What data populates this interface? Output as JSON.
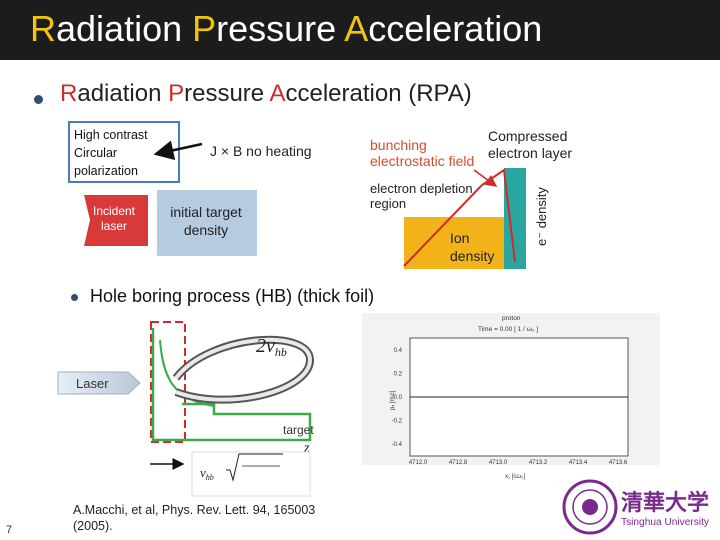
{
  "header": {
    "title_parts": [
      {
        "initial": "R",
        "rest": "adiation "
      },
      {
        "initial": "P",
        "rest": "ressure "
      },
      {
        "initial": "A",
        "rest": "cceleration"
      }
    ]
  },
  "subtitle": {
    "parts": [
      {
        "initial": "R",
        "rest": "adiation "
      },
      {
        "initial": "P",
        "rest": "ressure "
      },
      {
        "initial": "A",
        "rest": "cceleration (RPA)"
      }
    ]
  },
  "callout": {
    "lines": [
      "High contrast",
      "Circular",
      "polarization"
    ]
  },
  "figure_top": {
    "no_heating": "J × B no heating",
    "incident_laser": [
      "Incident",
      "laser"
    ],
    "initial_density": [
      "initial target",
      "density"
    ],
    "bunching": [
      "bunching",
      "electrostatic field"
    ],
    "compressed": [
      "Compressed",
      "electron layer"
    ],
    "depletion": [
      "electron depletion",
      "region"
    ],
    "ion_density": [
      "Ion",
      "density"
    ],
    "e_density": "e⁻ density"
  },
  "hole_boring": "Hole boring process  (HB)  (thick foil)",
  "figure_bottom": {
    "laser": "Laser",
    "velocity": "2v",
    "velocity_sub": "hb",
    "target": "target",
    "z": "z",
    "formula_lhs": "v",
    "formula_lhs_sub": "hb"
  },
  "plot": {
    "title": "proton",
    "time": "Time =    0.00 [ 1 / ω₀ ]",
    "ylabel": "pₓ [mᵢc]",
    "xlabel": "x₁ [cω₀]",
    "yticks": [
      "0.4",
      "0.2",
      "0.0",
      "-0.2",
      "-0.4"
    ],
    "xticks": [
      "4712.0",
      "4712.8",
      "4713.0",
      "4713.2",
      "4713.4",
      "4713.6"
    ]
  },
  "logo": {
    "chars": "清華大学",
    "english": "Tsinghua University"
  },
  "citation": {
    "line1": "A.Macchi, et al, Phys. Rev. Lett. 94, 165003",
    "line2": "(2005)."
  },
  "page_number": "7",
  "colors": {
    "header": "#1c1c1c",
    "accent": "#f2c410",
    "red": "#d22a2a",
    "teal": "#2aa6a0",
    "orange": "#f2b21a",
    "green": "#3aaa4a"
  }
}
